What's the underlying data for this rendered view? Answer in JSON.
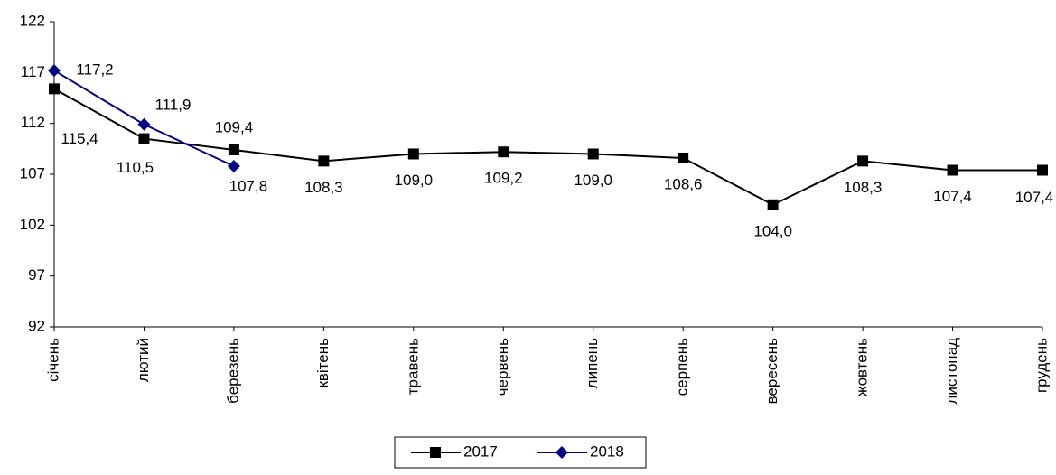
{
  "chart_data": {
    "type": "line",
    "categories": [
      "січень",
      "лютий",
      "березень",
      "квітень",
      "травень",
      "червень",
      "липень",
      "серпень",
      "вересень",
      "жовтень",
      "листопад",
      "грудень"
    ],
    "series": [
      {
        "name": "2017",
        "color": "#000000",
        "marker": "square",
        "values": [
          115.4,
          110.5,
          109.4,
          108.3,
          109.0,
          109.2,
          109.0,
          108.6,
          104.0,
          108.3,
          107.4,
          107.4
        ],
        "value_labels": [
          "115,4",
          "110,5",
          "109,4",
          "108,3",
          "109,0",
          "109,2",
          "109,0",
          "108,6",
          "104,0",
          "108,3",
          "107,4",
          "107,4"
        ]
      },
      {
        "name": "2018",
        "color": "#000080",
        "marker": "diamond",
        "values": [
          117.2,
          111.9,
          107.8,
          null,
          null,
          null,
          null,
          null,
          null,
          null,
          null,
          null
        ],
        "value_labels": [
          "117,2",
          "111,9",
          "107,8",
          null,
          null,
          null,
          null,
          null,
          null,
          null,
          null,
          null
        ]
      }
    ],
    "ylim": [
      92,
      122
    ],
    "yticks": [
      92,
      97,
      102,
      107,
      112,
      117,
      122
    ]
  }
}
